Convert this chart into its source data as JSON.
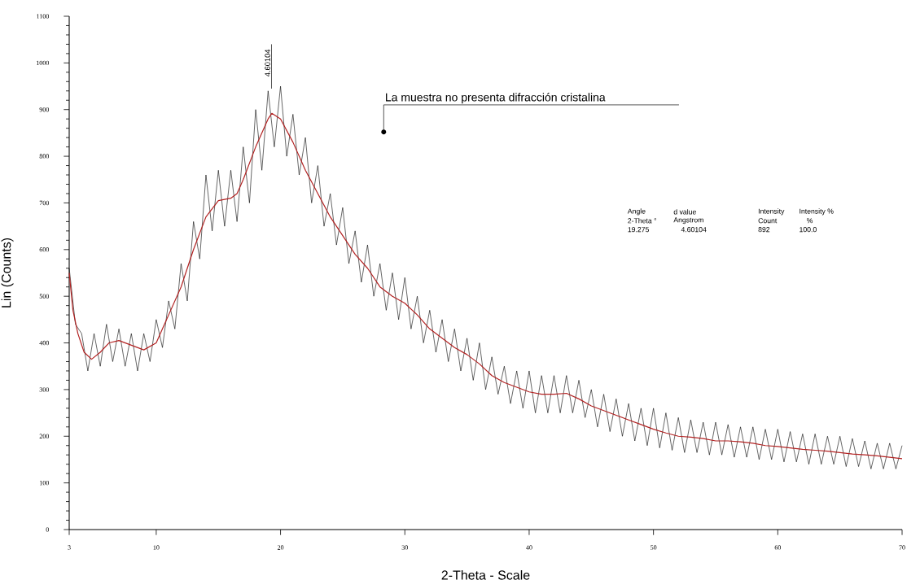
{
  "chart_data": {
    "type": "line",
    "xlabel": "2-Theta - Scale",
    "ylabel": "Lin (Counts)",
    "xlim": [
      3,
      70
    ],
    "ylim": [
      0,
      1100
    ],
    "xticks": [
      3,
      10,
      20,
      30,
      40,
      50,
      60,
      70
    ],
    "yticks": [
      0,
      100,
      200,
      300,
      400,
      500,
      600,
      700,
      800,
      900,
      1000,
      1100
    ],
    "series": [
      {
        "color": "#000000",
        "x": [
          3.0,
          3.5,
          4.0,
          4.5,
          5.0,
          5.5,
          6.0,
          6.5,
          7.0,
          7.5,
          8.0,
          8.5,
          9.0,
          9.5,
          10.0,
          10.5,
          11.0,
          11.5,
          12.0,
          12.5,
          13.0,
          13.5,
          14.0,
          14.5,
          15.0,
          15.5,
          16.0,
          16.5,
          17.0,
          17.5,
          18.0,
          18.5,
          19.0,
          19.5,
          20.0,
          20.5,
          21.0,
          21.5,
          22.0,
          22.5,
          23.0,
          23.5,
          24.0,
          24.5,
          25.0,
          25.5,
          26.0,
          26.5,
          27.0,
          27.5,
          28.0,
          28.5,
          29.0,
          29.5,
          30.0,
          30.5,
          31.0,
          31.5,
          32.0,
          32.5,
          33.0,
          33.5,
          34.0,
          34.5,
          35.0,
          35.5,
          36.0,
          36.5,
          37.0,
          37.5,
          38.0,
          38.5,
          39.0,
          39.5,
          40.0,
          40.5,
          41.0,
          41.5,
          42.0,
          42.5,
          43.0,
          43.5,
          44.0,
          44.5,
          45.0,
          45.5,
          46.0,
          46.5,
          47.0,
          47.5,
          48.0,
          48.5,
          49.0,
          49.5,
          50.0,
          50.5,
          51.0,
          51.5,
          52.0,
          52.5,
          53.0,
          53.5,
          54.0,
          54.5,
          55.0,
          55.5,
          56.0,
          56.5,
          57.0,
          57.5,
          58.0,
          58.5,
          59.0,
          59.5,
          60.0,
          60.5,
          61.0,
          61.5,
          62.0,
          62.5,
          63.0,
          63.5,
          64.0,
          64.5,
          65.0,
          65.5,
          66.0,
          66.5,
          67.0,
          67.5,
          68.0,
          68.5,
          69.0,
          69.5,
          70.0
        ],
        "values": [
          560,
          440,
          420,
          340,
          420,
          350,
          440,
          360,
          430,
          350,
          420,
          340,
          420,
          360,
          450,
          390,
          490,
          430,
          570,
          490,
          660,
          580,
          760,
          640,
          770,
          650,
          770,
          660,
          820,
          700,
          900,
          770,
          940,
          820,
          950,
          800,
          890,
          760,
          840,
          700,
          780,
          650,
          720,
          610,
          690,
          570,
          640,
          530,
          610,
          500,
          570,
          470,
          550,
          450,
          540,
          430,
          500,
          400,
          470,
          380,
          450,
          360,
          430,
          340,
          410,
          320,
          400,
          300,
          370,
          290,
          350,
          270,
          340,
          260,
          340,
          250,
          330,
          250,
          330,
          250,
          330,
          250,
          320,
          240,
          300,
          220,
          290,
          210,
          280,
          200,
          270,
          190,
          260,
          180,
          260,
          175,
          250,
          170,
          240,
          165,
          235,
          165,
          230,
          160,
          230,
          160,
          225,
          155,
          220,
          155,
          220,
          150,
          215,
          150,
          215,
          145,
          210,
          145,
          205,
          140,
          205,
          140,
          200,
          140,
          200,
          135,
          195,
          135,
          190,
          130,
          185,
          130,
          185,
          130,
          180
        ]
      },
      {
        "color": "#b22222",
        "x": [
          3.0,
          3.3,
          3.7,
          4.2,
          4.8,
          5.5,
          6.2,
          7,
          8,
          9,
          10,
          10.5,
          11,
          12,
          13,
          14,
          15,
          16,
          16.5,
          17,
          18,
          19,
          19.3,
          20,
          21,
          22,
          23,
          24,
          25,
          26,
          27,
          28,
          29,
          30,
          31,
          32,
          33,
          34,
          35,
          36,
          37,
          38,
          39,
          40,
          41,
          42,
          43,
          44,
          45,
          46,
          47,
          48,
          49,
          50,
          51,
          52,
          53,
          54,
          55,
          56,
          57,
          58,
          59,
          60,
          61,
          62,
          63,
          64,
          65,
          66,
          67,
          68,
          69,
          70
        ],
        "values": [
          550,
          470,
          420,
          380,
          365,
          380,
          400,
          405,
          395,
          385,
          400,
          430,
          460,
          520,
          600,
          670,
          705,
          710,
          720,
          750,
          820,
          880,
          892,
          880,
          830,
          770,
          720,
          670,
          630,
          590,
          560,
          520,
          500,
          485,
          460,
          430,
          410,
          390,
          375,
          355,
          330,
          315,
          305,
          295,
          290,
          290,
          292,
          280,
          265,
          255,
          245,
          235,
          225,
          215,
          207,
          200,
          198,
          195,
          190,
          190,
          188,
          185,
          180,
          178,
          175,
          172,
          170,
          168,
          165,
          162,
          160,
          158,
          155,
          152
        ]
      },
      {
        "color": "#000000",
        "x": [
          19.275,
          19.275
        ],
        "values": [
          945,
          1040
        ]
      }
    ],
    "annotations": [
      {
        "text": "4.60104",
        "x": 19.275,
        "y": 1000
      },
      {
        "text": "La muestra no presenta difracción cristalina",
        "x": 28.3,
        "y": 852
      },
      "Angle",
      "d value",
      "Intensity",
      "Intensity %",
      "2-Theta °",
      "Angstrom",
      "Count",
      "%",
      "19.275",
      "4.60104",
      "892",
      "100.0"
    ]
  }
}
